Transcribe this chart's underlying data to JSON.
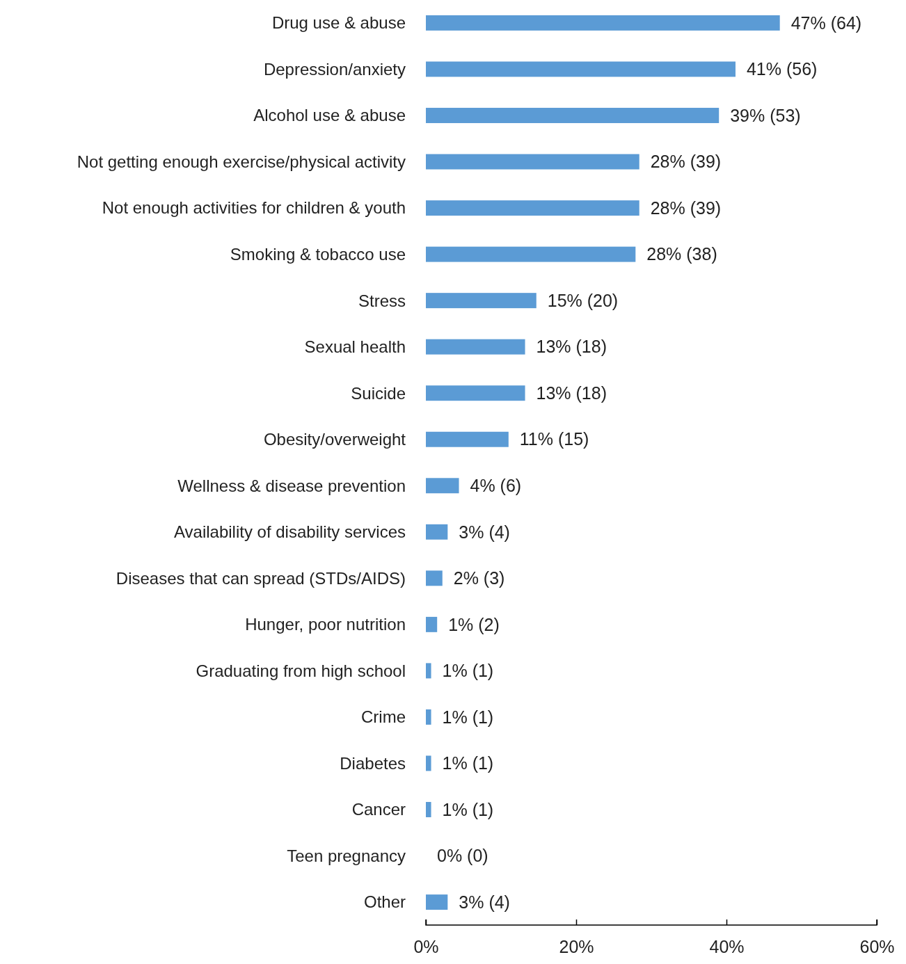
{
  "chart_data": {
    "type": "bar",
    "orientation": "horizontal",
    "categories": [
      "Drug use & abuse",
      "Depression/anxiety",
      "Alcohol use & abuse",
      "Not getting enough exercise/physical activity",
      "Not enough activities for children & youth",
      "Smoking & tobacco use",
      "Stress",
      "Sexual health",
      "Suicide",
      "Obesity/overweight",
      "Wellness & disease prevention",
      "Availability of disability services",
      "Diseases that can spread (STDs/AIDS)",
      "Hunger, poor nutrition",
      "Graduating from high school",
      "Crime",
      "Diabetes",
      "Cancer",
      "Teen pregnancy",
      "Other"
    ],
    "values": [
      47.1,
      41.2,
      39.0,
      28.4,
      28.4,
      27.9,
      14.7,
      13.2,
      13.2,
      11.0,
      4.4,
      2.9,
      2.2,
      1.5,
      0.7,
      0.7,
      0.7,
      0.7,
      0,
      2.9
    ],
    "value_labels": [
      "47% (64)",
      "41% (56)",
      "39% (53)",
      "28% (39)",
      "28% (39)",
      "28% (38)",
      "15% (20)",
      "13% (18)",
      "13% (18)",
      "11% (15)",
      "4% (6)",
      "3% (4)",
      "2% (3)",
      "1% (2)",
      "1% (1)",
      "1% (1)",
      "1% (1)",
      "1% (1)",
      "0% (0)",
      "3% (4)"
    ],
    "color": "#5b9bd5",
    "xlim": [
      0,
      60
    ],
    "xticks": [
      {
        "value": 0,
        "label": "0%"
      },
      {
        "value": 20,
        "label": "20%"
      },
      {
        "value": 40,
        "label": "40%"
      },
      {
        "value": 60,
        "label": "60%"
      }
    ],
    "grid": false
  }
}
